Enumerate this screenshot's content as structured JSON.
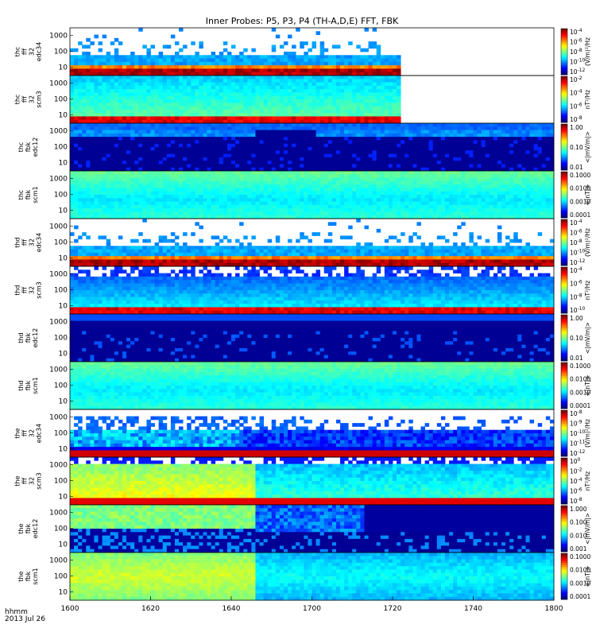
{
  "chart_data": {
    "type": "heatmap",
    "title": "Inner Probes: P5, P3, P4 (TH-A,D,E) FFT, FBK",
    "date_label": "hhmm\n2013 Jul 26",
    "x_axis": {
      "range": [
        1600,
        1800
      ],
      "ticks": [
        1600,
        1620,
        1640,
        1700,
        1720,
        1740,
        1800
      ],
      "tick_labels": [
        "1600",
        "1620",
        "1640",
        "1700",
        "1720",
        "1740",
        "1800"
      ]
    },
    "y_axis": {
      "scale": "log",
      "range": [
        3,
        3000
      ],
      "ticks": [
        "10",
        "100",
        "1000"
      ]
    },
    "panels": [
      {
        "label": [
          "thc",
          "fff",
          "32",
          "edc34"
        ],
        "colorbar_ticks": [
          "10^-4",
          "10^-6",
          "10^-8",
          "10^-10",
          "10^-12"
        ],
        "colorbar_label": "(V/m)^2/Hz",
        "data_end": 1722,
        "style": "fff_e",
        "activity": 0.6
      },
      {
        "label": [
          "thc",
          "fff",
          "32",
          "scm3"
        ],
        "colorbar_ticks": [
          "10^-2",
          "10^-4",
          "10^-6",
          "10^-8"
        ],
        "colorbar_label": "nT^2/Hz",
        "data_end": 1722,
        "style": "fff_scm",
        "activity": 0.2
      },
      {
        "label": [
          "thc",
          "fbk",
          "edc12"
        ],
        "colorbar_ticks": [
          "1.00",
          "0.10",
          "0.01"
        ],
        "colorbar_label": "<|mV/m|>",
        "data_end": 1800,
        "style": "fbk_e",
        "activity": 0.3
      },
      {
        "label": [
          "thc",
          "fbk",
          "scm1"
        ],
        "colorbar_ticks": [
          "0.1000",
          "0.0100",
          "0.0010",
          "0.0001"
        ],
        "colorbar_label": "<|nT|>",
        "data_end": 1800,
        "style": "fbk_scm",
        "activity": 0.1
      },
      {
        "label": [
          "thd",
          "fff",
          "32",
          "edc34"
        ],
        "colorbar_ticks": [
          "10^-4",
          "10^-6",
          "10^-8",
          "10^-10",
          "10^-12"
        ],
        "colorbar_label": "(V/m)^2/Hz",
        "data_end": 1800,
        "style": "fff_e",
        "activity": 0.4
      },
      {
        "label": [
          "thd",
          "fff",
          "32",
          "scm3"
        ],
        "colorbar_ticks": [
          "10^-4",
          "10^-6",
          "10^-8",
          "10^-10"
        ],
        "colorbar_label": "nT^2/Hz",
        "data_end": 1800,
        "style": "fff_scm_sparse",
        "activity": 0.3
      },
      {
        "label": [
          "thd",
          "fbk",
          "edc12"
        ],
        "colorbar_ticks": [
          "1.00",
          "0.10",
          "0.01"
        ],
        "colorbar_label": "<|mV/m|>",
        "data_end": 1800,
        "style": "fbk_e_dark",
        "activity": 0.3
      },
      {
        "label": [
          "thd",
          "fbk",
          "scm1"
        ],
        "colorbar_ticks": [
          "0.1000",
          "0.0100",
          "0.0010",
          "0.0001"
        ],
        "colorbar_label": "<|nT|>",
        "data_end": 1800,
        "style": "fbk_scm",
        "activity": 0.1
      },
      {
        "label": [
          "the",
          "fff",
          "32",
          "edc34"
        ],
        "colorbar_ticks": [
          "10^-8",
          "10^-9",
          "10^-10",
          "10^-11",
          "10^-12"
        ],
        "colorbar_label": "(V/m)^2/Hz",
        "data_end": 1800,
        "style": "fff_e_active",
        "activity": 0.8
      },
      {
        "label": [
          "the",
          "fff",
          "32",
          "scm3"
        ],
        "colorbar_ticks": [
          "10^0",
          "10^-2",
          "10^-4",
          "10^-6",
          "10^-8"
        ],
        "colorbar_label": "nT^2/Hz",
        "data_end": 1800,
        "style": "fff_scm_active",
        "activity": 0.8
      },
      {
        "label": [
          "the",
          "fbk",
          "edc12"
        ],
        "colorbar_ticks": [
          "1.000",
          "0.100",
          "0.010",
          "0.001"
        ],
        "colorbar_label": "<|mV/m|>",
        "data_end": 1800,
        "style": "fbk_e_active",
        "activity": 0.8
      },
      {
        "label": [
          "the",
          "fbk",
          "scm1"
        ],
        "colorbar_ticks": [
          "0.1000",
          "0.0100",
          "0.0010",
          "0.0001"
        ],
        "colorbar_label": "<|nT|>",
        "data_end": 1800,
        "style": "fbk_scm_active",
        "activity": 0.7
      }
    ]
  }
}
